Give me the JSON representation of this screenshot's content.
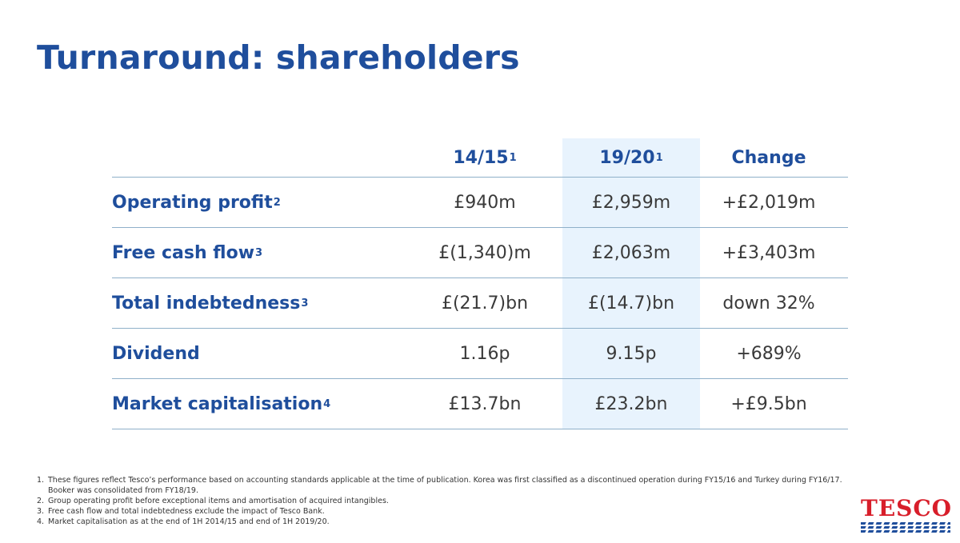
{
  "slide": {
    "title": "Turnaround: shareholders"
  },
  "table": {
    "headers": [
      {
        "label": "14/15",
        "sup": "1"
      },
      {
        "label": "19/20",
        "sup": "1"
      },
      {
        "label": "Change",
        "sup": ""
      }
    ],
    "rows": [
      {
        "label": "Operating profit",
        "sup": "2",
        "v1": "£940m",
        "v2": "£2,959m",
        "change": "+£2,019m"
      },
      {
        "label": "Free cash flow",
        "sup": "3",
        "v1": "£(1,340)m",
        "v2": "£2,063m",
        "change": "+£3,403m"
      },
      {
        "label": "Total indebtedness",
        "sup": "3",
        "v1": "£(21.7)bn",
        "v2": "£(14.7)bn",
        "change": "down 32%"
      },
      {
        "label": "Dividend",
        "sup": "",
        "v1": "1.16p",
        "v2": "9.15p",
        "change": "+689%"
      },
      {
        "label": "Market capitalisation",
        "sup": "4",
        "v1": "£13.7bn",
        "v2": "£23.2bn",
        "change": "+£9.5bn"
      }
    ]
  },
  "footnotes": [
    {
      "num": "1.",
      "text": "These figures reflect Tesco’s performance based on accounting standards applicable at the time of publication.  Korea was first classified as a discontinued operation during FY15/16 and Turkey during FY16/17. Booker was consolidated from FY18/19."
    },
    {
      "num": "2.",
      "text": "Group operating profit before exceptional items and amortisation of acquired intangibles."
    },
    {
      "num": "3.",
      "text": "Free cash flow and total indebtedness exclude the impact of Tesco Bank."
    },
    {
      "num": "4.",
      "text": "Market capitalisation as at the end of 1H 2014/15 and end of 1H 2019/20."
    }
  ],
  "logo": {
    "text": "TESCO"
  },
  "colors": {
    "brand_blue": "#1f4e9c",
    "brand_red": "#d81e2a",
    "highlight": "#e8f3fd"
  }
}
